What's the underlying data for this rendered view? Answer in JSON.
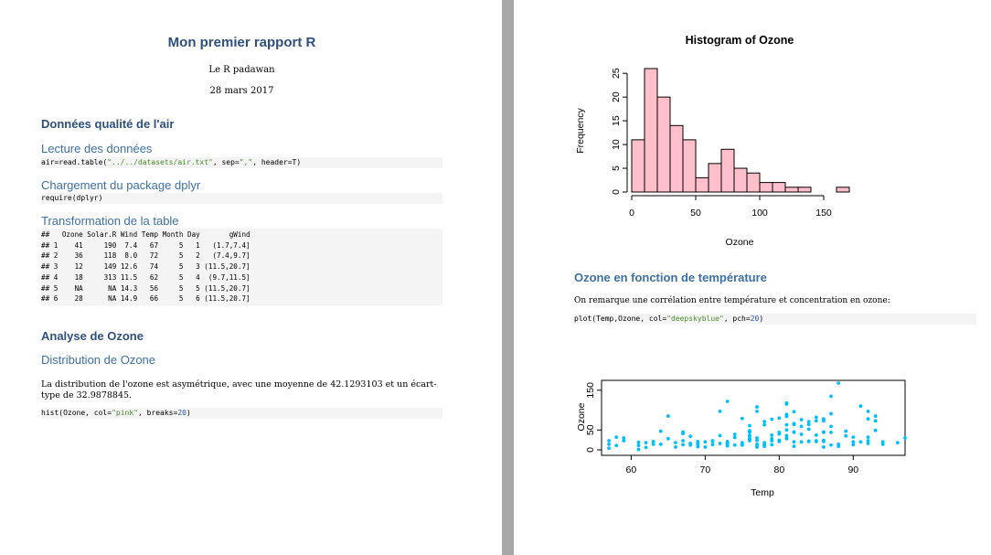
{
  "report": {
    "title": "Mon premier rapport R",
    "author": "Le R padawan",
    "date": "28 mars 2017"
  },
  "sections": {
    "air_quality": "Données qualité de l'air",
    "reading": "Lecture des données",
    "dplyr": "Chargement du package dplyr",
    "transform": "Transformation de la table",
    "ozone_analysis": "Analyse de Ozone",
    "ozone_distribution": "Distribution de Ozone",
    "ozone_temp": "Ozone en fonction de température"
  },
  "code": {
    "read_fn": "air=read.table(",
    "read_str1": "\"../../datasets/air.txt\"",
    "read_sep_kw": ", sep=",
    "read_str2": "\",\"",
    "read_rest": ", header=T)",
    "require": "require(dplyr)",
    "hist_fn": "hist(Ozone, col=",
    "hist_str": "\"pink\"",
    "hist_mid": ", breaks=",
    "hist_num": "20",
    "hist_end": ")",
    "plot_fn": "plot(Temp,Ozone, col=",
    "plot_str": "\"deepskyblue\"",
    "plot_mid": ", pch=",
    "plot_num": "20",
    "plot_end": ")"
  },
  "table_output": {
    "header": "##   Ozone Solar.R Wind Temp Month Day       gWind",
    "rows": [
      "## 1    41     190  7.4   67     5   1   (1.7,7.4]",
      "## 2    36     118  8.0   72     5   2   (7.4,9.7]",
      "## 3    12     149 12.6   74     5   3 (11.5,20.7]",
      "## 4    18     313 11.5   62     5   4  (9.7,11.5]",
      "## 5    NA      NA 14.3   56     5   5 (11.5,20.7]",
      "## 6    28      NA 14.9   66     5   6 (11.5,20.7]"
    ]
  },
  "paragraphs": {
    "ozone_distribution": "La distribution de l'ozone est asymétrique, avec une moyenne de 42.1293103 et un écart-type de 32.9878845.",
    "correlation": "On remarque une corrélation entre température et concentration en ozone:"
  },
  "chart_data": [
    {
      "type": "bar",
      "title": "Histogram of Ozone",
      "xlabel": "Ozone",
      "ylabel": "Frequency",
      "bin_edges": [
        0,
        10,
        20,
        30,
        40,
        50,
        60,
        70,
        80,
        90,
        100,
        110,
        120,
        130,
        140,
        150,
        160,
        170
      ],
      "values": [
        11,
        26,
        20,
        14,
        11,
        3,
        6,
        9,
        5,
        4,
        2,
        2,
        1,
        1,
        0,
        0,
        1
      ],
      "xticks": [
        0,
        50,
        100,
        150
      ],
      "yticks": [
        0,
        5,
        10,
        15,
        20,
        25
      ],
      "xlim": [
        0,
        170
      ],
      "ylim": [
        0,
        26
      ],
      "bar_color": "#ffc0cb",
      "grid": false
    },
    {
      "type": "scatter",
      "xlabel": "Temp",
      "ylabel": "Ozone",
      "xticks": [
        60,
        70,
        80,
        90
      ],
      "yticks": [
        0,
        50,
        150
      ],
      "xlim": [
        56,
        97
      ],
      "ylim": [
        0,
        168
      ],
      "point_color": "#00bfff",
      "grid": false,
      "points": [
        [
          67,
          41
        ],
        [
          72,
          36
        ],
        [
          74,
          12
        ],
        [
          62,
          18
        ],
        [
          65,
          28
        ],
        [
          59,
          23
        ],
        [
          61,
          19
        ],
        [
          69,
          8
        ],
        [
          66,
          7
        ],
        [
          68,
          16
        ],
        [
          58,
          11
        ],
        [
          64,
          14
        ],
        [
          66,
          18
        ],
        [
          57,
          14
        ],
        [
          68,
          34
        ],
        [
          62,
          6
        ],
        [
          59,
          30
        ],
        [
          73,
          11
        ],
        [
          61,
          1
        ],
        [
          61,
          11
        ],
        [
          57,
          4
        ],
        [
          58,
          32
        ],
        [
          57,
          23
        ],
        [
          67,
          45
        ],
        [
          81,
          115
        ],
        [
          79,
          37
        ],
        [
          76,
          29
        ],
        [
          78,
          71
        ],
        [
          74,
          39
        ],
        [
          67,
          23
        ],
        [
          84,
          21
        ],
        [
          85,
          37
        ],
        [
          82,
          20
        ],
        [
          87,
          12
        ],
        [
          90,
          13
        ],
        [
          87,
          135
        ],
        [
          93,
          49
        ],
        [
          92,
          32
        ],
        [
          82,
          64
        ],
        [
          80,
          40
        ],
        [
          79,
          77
        ],
        [
          77,
          97
        ],
        [
          72,
          97
        ],
        [
          65,
          85
        ],
        [
          73,
          10
        ],
        [
          76,
          27
        ],
        [
          77,
          7
        ],
        [
          76,
          48
        ],
        [
          76,
          35
        ],
        [
          76,
          61
        ],
        [
          75,
          79
        ],
        [
          78,
          63
        ],
        [
          73,
          16
        ],
        [
          80,
          80
        ],
        [
          77,
          108
        ],
        [
          83,
          20
        ],
        [
          84,
          52
        ],
        [
          85,
          82
        ],
        [
          81,
          50
        ],
        [
          84,
          64
        ],
        [
          83,
          59
        ],
        [
          83,
          39
        ],
        [
          88,
          9
        ],
        [
          92,
          16
        ],
        [
          92,
          78
        ],
        [
          89,
          35
        ],
        [
          82,
          66
        ],
        [
          73,
          122
        ],
        [
          81,
          89
        ],
        [
          91,
          110
        ],
        [
          80,
          44
        ],
        [
          81,
          28
        ],
        [
          82,
          65
        ],
        [
          84,
          22
        ],
        [
          87,
          59
        ],
        [
          85,
          23
        ],
        [
          74,
          31
        ],
        [
          86,
          44
        ],
        [
          85,
          21
        ],
        [
          82,
          9
        ],
        [
          86,
          45
        ],
        [
          88,
          168
        ],
        [
          86,
          73
        ],
        [
          83,
          76
        ],
        [
          81,
          118
        ],
        [
          81,
          84
        ],
        [
          81,
          85
        ],
        [
          82,
          96
        ],
        [
          86,
          78
        ],
        [
          85,
          73
        ],
        [
          87,
          91
        ],
        [
          89,
          47
        ],
        [
          90,
          32
        ],
        [
          90,
          20
        ],
        [
          92,
          23
        ],
        [
          86,
          21
        ],
        [
          86,
          24
        ],
        [
          82,
          44
        ],
        [
          80,
          21
        ],
        [
          79,
          28
        ],
        [
          77,
          9
        ],
        [
          79,
          13
        ],
        [
          76,
          46
        ],
        [
          78,
          18
        ],
        [
          78,
          13
        ],
        [
          77,
          24
        ],
        [
          72,
          16
        ],
        [
          75,
          13
        ],
        [
          79,
          23
        ],
        [
          81,
          36
        ],
        [
          86,
          7
        ],
        [
          88,
          14
        ],
        [
          97,
          30
        ],
        [
          94,
          14
        ],
        [
          96,
          18
        ],
        [
          94,
          20
        ],
        [
          91,
          20
        ],
        [
          92,
          97
        ],
        [
          93,
          73
        ],
        [
          93,
          85
        ],
        [
          87,
          44
        ],
        [
          84,
          71
        ],
        [
          80,
          24
        ],
        [
          78,
          13
        ],
        [
          75,
          12
        ],
        [
          73,
          18
        ],
        [
          81,
          63
        ],
        [
          76,
          44
        ],
        [
          77,
          30
        ],
        [
          71,
          13
        ],
        [
          71,
          21
        ],
        [
          78,
          9
        ],
        [
          67,
          13
        ],
        [
          76,
          23
        ],
        [
          68,
          16
        ],
        [
          82,
          45
        ],
        [
          64,
          47
        ],
        [
          71,
          23
        ],
        [
          81,
          30
        ],
        [
          69,
          21
        ],
        [
          63,
          14
        ],
        [
          70,
          20
        ],
        [
          73,
          14
        ],
        [
          75,
          18
        ],
        [
          76,
          36
        ],
        [
          68,
          12
        ],
        [
          73,
          21
        ],
        [
          69,
          14
        ],
        [
          70,
          7
        ],
        [
          63,
          21
        ],
        [
          69,
          16
        ],
        [
          77,
          14
        ]
      ]
    }
  ]
}
